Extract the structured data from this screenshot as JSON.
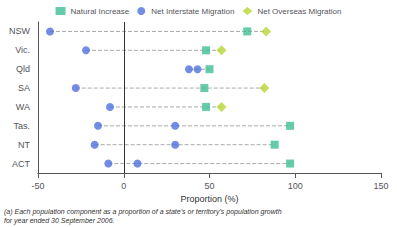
{
  "chart_data": {
    "type": "scatter",
    "categories": [
      "NSW",
      "Vic.",
      "Qld",
      "SA",
      "WA",
      "Tas.",
      "NT",
      "ACT"
    ],
    "series": [
      {
        "name": "Natural Increase",
        "marker": "square",
        "values": [
          [
            72
          ],
          [
            48
          ],
          [
            50
          ],
          [
            47
          ],
          [
            48
          ],
          [
            97
          ],
          [
            88
          ],
          [
            97
          ]
        ]
      },
      {
        "name": "Net Interstate Migration",
        "marker": "circle",
        "values": [
          [
            -43
          ],
          [
            -22
          ],
          [
            38,
            43
          ],
          [
            -28
          ],
          [
            -8
          ],
          [
            -15,
            30
          ],
          [
            -17,
            30
          ],
          [
            -9,
            8
          ]
        ]
      },
      {
        "name": "Net Overseas Migration",
        "marker": "diamond",
        "values": [
          [
            83
          ],
          [
            57
          ],
          [],
          [
            82
          ],
          [
            57
          ],
          [],
          [],
          []
        ]
      }
    ],
    "line_style": "dashed",
    "xlabel": "Proportion (%)",
    "xlim": [
      -50,
      150
    ],
    "xticks": [
      -50,
      0,
      50,
      100,
      150
    ],
    "grid": false,
    "legend": "top",
    "footnote": "(a) Each population component as a proportion of a state’s or territory’s population growth\nfor year ended 30 September 2006."
  }
}
